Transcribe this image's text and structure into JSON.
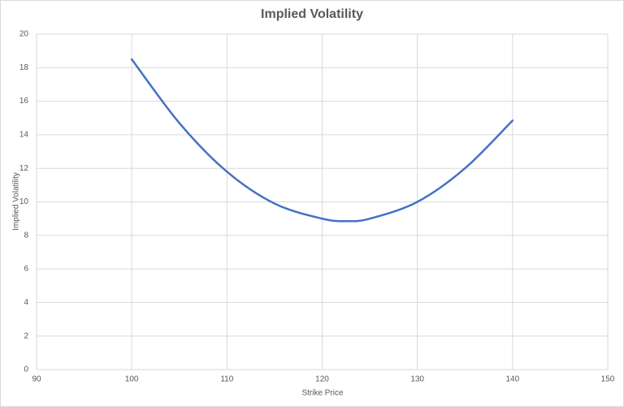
{
  "chart_data": {
    "type": "line",
    "title": "Implied Volatility",
    "x_label": "Strike Price",
    "y_label": "Implied Volatility",
    "x": [
      100,
      105,
      110,
      115,
      120,
      122.5,
      125,
      130,
      135,
      140
    ],
    "series": [
      {
        "name": "Implied Volatility",
        "color": "#4472c4",
        "values": [
          18.5,
          14.7,
          11.8,
          9.9,
          9.0,
          8.85,
          9.0,
          10.0,
          12.0,
          14.85
        ]
      }
    ],
    "xlim": [
      90,
      150
    ],
    "xticks": [
      90,
      100,
      110,
      120,
      130,
      140,
      150
    ],
    "ylim": [
      0,
      20
    ],
    "yticks": [
      0,
      2,
      4,
      6,
      8,
      10,
      12,
      14,
      16,
      18,
      20
    ],
    "grid": true
  }
}
